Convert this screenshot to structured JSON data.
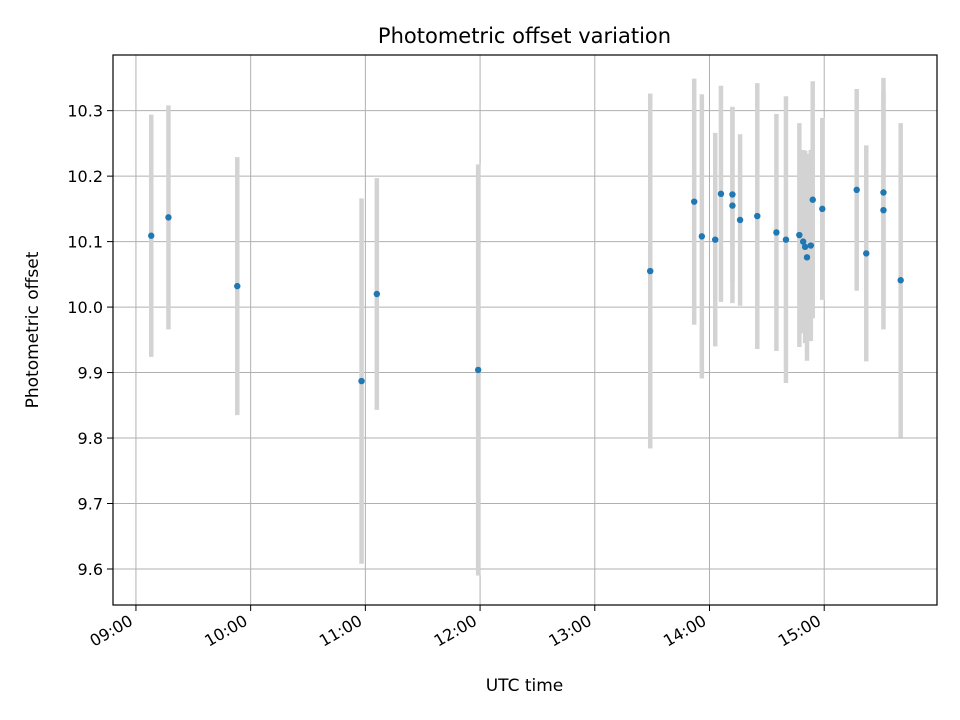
{
  "chart_data": {
    "type": "scatter",
    "title": "Photometric offset variation",
    "xlabel": "UTC time",
    "ylabel": "Photometric offset",
    "x_unit": "UTC time (HH:MM)",
    "xlim": [
      "08:48",
      "15:59"
    ],
    "ylim": [
      9.545,
      10.385
    ],
    "x_ticks": [
      "09:00",
      "10:00",
      "11:00",
      "12:00",
      "13:00",
      "14:00",
      "15:00"
    ],
    "y_ticks": [
      9.6,
      9.7,
      9.8,
      9.9,
      10.0,
      10.1,
      10.2,
      10.3
    ],
    "y_tick_labels": [
      "9.6",
      "9.7",
      "9.8",
      "9.9",
      "10.0",
      "10.1",
      "10.2",
      "10.3"
    ],
    "grid": true,
    "marker_color": "#1f77b4",
    "errorbar_color": "#d3d3d3",
    "points": [
      {
        "x": "09:08",
        "y": 10.109,
        "yerr": 0.185
      },
      {
        "x": "09:17",
        "y": 10.137,
        "yerr": 0.171
      },
      {
        "x": "09:53",
        "y": 10.032,
        "yerr": 0.197
      },
      {
        "x": "10:58",
        "y": 9.887,
        "yerr": 0.279
      },
      {
        "x": "11:06",
        "y": 10.02,
        "yerr": 0.177
      },
      {
        "x": "11:59",
        "y": 9.904,
        "yerr": 0.314
      },
      {
        "x": "13:29",
        "y": 10.055,
        "yerr": 0.271
      },
      {
        "x": "13:52",
        "y": 10.161,
        "yerr": 0.188
      },
      {
        "x": "13:56",
        "y": 10.108,
        "yerr": 0.217
      },
      {
        "x": "14:03",
        "y": 10.103,
        "yerr": 0.163
      },
      {
        "x": "14:06",
        "y": 10.173,
        "yerr": 0.165
      },
      {
        "x": "14:12",
        "y": 10.155,
        "yerr": 0.149
      },
      {
        "x": "14:12",
        "y": 10.172,
        "yerr": 0.134
      },
      {
        "x": "14:16",
        "y": 10.133,
        "yerr": 0.131
      },
      {
        "x": "14:25",
        "y": 10.139,
        "yerr": 0.203
      },
      {
        "x": "14:35",
        "y": 10.114,
        "yerr": 0.181
      },
      {
        "x": "14:40",
        "y": 10.103,
        "yerr": 0.219
      },
      {
        "x": "14:47",
        "y": 10.11,
        "yerr": 0.171
      },
      {
        "x": "14:49",
        "y": 10.1,
        "yerr": 0.14
      },
      {
        "x": "14:50",
        "y": 10.092,
        "yerr": 0.147
      },
      {
        "x": "14:51",
        "y": 10.076,
        "yerr": 0.158
      },
      {
        "x": "14:53",
        "y": 10.094,
        "yerr": 0.146
      },
      {
        "x": "14:54",
        "y": 10.164,
        "yerr": 0.181
      },
      {
        "x": "14:59",
        "y": 10.15,
        "yerr": 0.139
      },
      {
        "x": "15:17",
        "y": 10.179,
        "yerr": 0.154
      },
      {
        "x": "15:22",
        "y": 10.082,
        "yerr": 0.165
      },
      {
        "x": "15:31",
        "y": 10.148,
        "yerr": 0.182
      },
      {
        "x": "15:31",
        "y": 10.175,
        "yerr": 0.175
      },
      {
        "x": "15:40",
        "y": 10.041,
        "yerr": 0.24
      }
    ]
  }
}
